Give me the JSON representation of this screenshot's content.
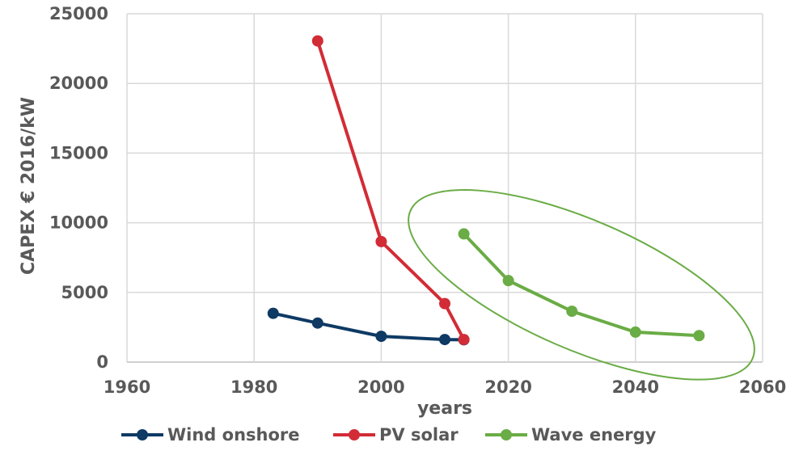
{
  "chart_data": {
    "type": "line",
    "title": "",
    "xlabel": "years",
    "ylabel": "CAPEX € 2016/kW",
    "xlim": [
      1960,
      2060
    ],
    "ylim": [
      0,
      25000
    ],
    "x_ticks": [
      1960,
      1980,
      2000,
      2020,
      2040,
      2060
    ],
    "y_ticks": [
      0,
      5000,
      10000,
      15000,
      20000,
      25000
    ],
    "x_tick_labels": [
      "1960",
      "1980",
      "2000",
      "2020",
      "2040",
      "2060"
    ],
    "y_tick_labels": [
      "0",
      "5000",
      "10000",
      "15000",
      "20000",
      "25000"
    ],
    "grid": true,
    "legend_position": "bottom",
    "series": [
      {
        "name": "Wind onshore",
        "color": "#0e3a64",
        "x": [
          1983,
          1990,
          2000,
          2010,
          2013
        ],
        "y": [
          3500,
          2800,
          1850,
          1620,
          1600
        ]
      },
      {
        "name": "PV solar",
        "color": "#d22c36",
        "x": [
          1990,
          2000,
          2010,
          2013
        ],
        "y": [
          23050,
          8650,
          4200,
          1620
        ]
      },
      {
        "name": "Wave energy",
        "color": "#6aac45",
        "x": [
          2013,
          2020,
          2030,
          2040,
          2050
        ],
        "y": [
          9200,
          5850,
          3650,
          2150,
          1900
        ]
      }
    ],
    "annotations": [
      {
        "type": "ellipse",
        "color": "#6aac45",
        "encloses": "Wave energy"
      }
    ]
  }
}
